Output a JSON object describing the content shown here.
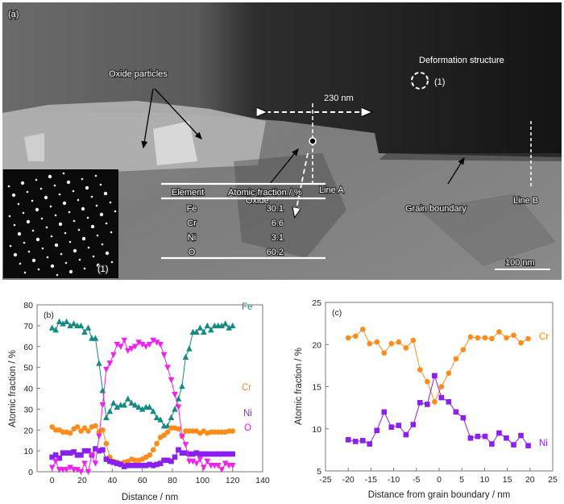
{
  "panel_a": {
    "label": "(a)",
    "annotations": {
      "oxide_particles": "Oxide particles",
      "oxide": "Oxide",
      "line_a": "Line A",
      "line_b": "Line B",
      "grain_boundary": "Grain boundary",
      "deformation_structure": "Deformation structure",
      "distance": "230 nm",
      "diffraction_marker": "(1)",
      "scale_bar": "100 nm",
      "inset_label": "(1)"
    },
    "table": {
      "headers": [
        "Element",
        "Atomic fraction / %"
      ],
      "rows": [
        {
          "element": "Fe",
          "value": "30.1"
        },
        {
          "element": "Cr",
          "value": "6.6"
        },
        {
          "element": "Ni",
          "value": "3.1"
        },
        {
          "element": "O",
          "value": "60.2"
        }
      ]
    }
  },
  "chart_data": [
    {
      "type": "line",
      "panel_label": "(b)",
      "xlabel": "Distance / nm",
      "ylabel": "Atomic fraction / %",
      "xlim": [
        -10,
        140
      ],
      "ylim": [
        0,
        80
      ],
      "xticks": [
        0,
        20,
        40,
        60,
        80,
        100,
        120,
        140
      ],
      "yticks": [
        0,
        10,
        20,
        30,
        40,
        50,
        60,
        70,
        80
      ],
      "grid": false,
      "x_start": 0,
      "x_end": 120,
      "series": [
        {
          "name": "Fe",
          "color": "#138a82",
          "marker": "triangle-up",
          "values": [
            69,
            68,
            72,
            71,
            72,
            70,
            71,
            70,
            70,
            67,
            69,
            64,
            64,
            52,
            39,
            26,
            29,
            33,
            31,
            32,
            32,
            35,
            33,
            32,
            31,
            30,
            31,
            31,
            29,
            26,
            25,
            22,
            22,
            26,
            30,
            35,
            41,
            55,
            59,
            67,
            67,
            69,
            67,
            70,
            68,
            70,
            70,
            70,
            71,
            69,
            70
          ]
        },
        {
          "name": "Cr",
          "color": "#ff8c1a",
          "marker": "circle",
          "values": [
            21.5,
            20,
            20,
            19,
            19,
            18.5,
            20.5,
            21.5,
            19.5,
            21,
            19.5,
            21.5,
            22,
            19,
            20,
            13.5,
            7,
            5,
            4.5,
            4,
            4.5,
            5,
            6,
            5.5,
            5.5,
            6,
            7,
            8,
            10.5,
            13.5,
            16.5,
            17.5,
            19,
            21,
            21,
            20.5,
            17,
            19.5,
            19.5,
            19.5,
            19.5,
            18.5,
            19.5,
            18.5,
            19,
            19,
            19,
            19,
            19,
            19.5,
            19.5
          ]
        },
        {
          "name": "Ni",
          "color": "#8a1ff0",
          "marker": "square",
          "values": [
            7,
            8,
            6.5,
            9,
            9,
            9,
            9.5,
            8,
            8,
            10,
            10,
            8,
            11,
            10,
            10.5,
            6,
            5,
            4.5,
            4,
            3.5,
            2.5,
            3,
            3,
            3,
            3,
            3,
            3,
            3.5,
            3,
            3.5,
            4,
            5.5,
            5.5,
            5,
            7,
            10.5,
            9,
            9,
            8.5,
            8.5,
            9,
            8.5,
            8.5,
            8.5,
            8.5,
            8.5,
            8.5,
            8.5,
            8.5,
            8.5,
            8.5
          ]
        },
        {
          "name": "O",
          "color": "#f020f0",
          "marker": "triangle-down",
          "values": [
            2,
            5,
            1,
            1,
            1,
            2,
            1,
            1,
            0,
            4,
            0,
            8,
            4,
            17,
            32,
            49,
            52,
            56,
            61,
            60,
            63,
            58,
            59,
            60,
            62,
            61,
            60,
            61,
            63,
            62,
            61,
            56,
            50,
            44,
            37,
            31,
            17,
            13,
            5,
            5,
            4,
            6,
            2,
            5,
            3,
            3,
            3,
            1,
            4,
            3,
            3
          ]
        }
      ]
    },
    {
      "type": "line",
      "panel_label": "(c)",
      "xlabel": "Distance from grain boundary / nm",
      "ylabel": "Atomic fraction / %",
      "xlim": [
        -25,
        25
      ],
      "ylim": [
        5,
        25
      ],
      "xticks": [
        -25,
        -20,
        -15,
        -10,
        -5,
        0,
        5,
        10,
        15,
        20,
        25
      ],
      "yticks": [
        5,
        10,
        15,
        20,
        25
      ],
      "grid": false,
      "x": [
        -20,
        -18.4,
        -16.8,
        -15.3,
        -13.7,
        -12.1,
        -10.5,
        -8.9,
        -7.3,
        -5.7,
        -4.2,
        -2.6,
        -1,
        0.5,
        2.1,
        3.7,
        5.3,
        6.9,
        8.5,
        10.1,
        11.6,
        13.2,
        14.8,
        16.4,
        18,
        19.6
      ],
      "series": [
        {
          "name": "Cr",
          "color": "#ff8c1a",
          "marker": "circle",
          "values": [
            20.8,
            21,
            21.8,
            20.1,
            20.3,
            19,
            20.1,
            20.3,
            19.6,
            20.5,
            17,
            15.6,
            13.2,
            15,
            16.6,
            18.3,
            19.4,
            20.9,
            20.8,
            20.8,
            20.7,
            21.5,
            20.8,
            21.1,
            20.2,
            20.7
          ]
        },
        {
          "name": "Ni",
          "color": "#8a1ff0",
          "marker": "square",
          "values": [
            8.7,
            8.5,
            8.6,
            8.2,
            9.8,
            12,
            10.2,
            10.4,
            9.3,
            10.5,
            13.1,
            12.9,
            16.3,
            13.7,
            13.2,
            12,
            11.3,
            8.9,
            9.1,
            9.1,
            8.2,
            9.5,
            8.9,
            8.1,
            9.2,
            8.0
          ]
        }
      ]
    }
  ]
}
